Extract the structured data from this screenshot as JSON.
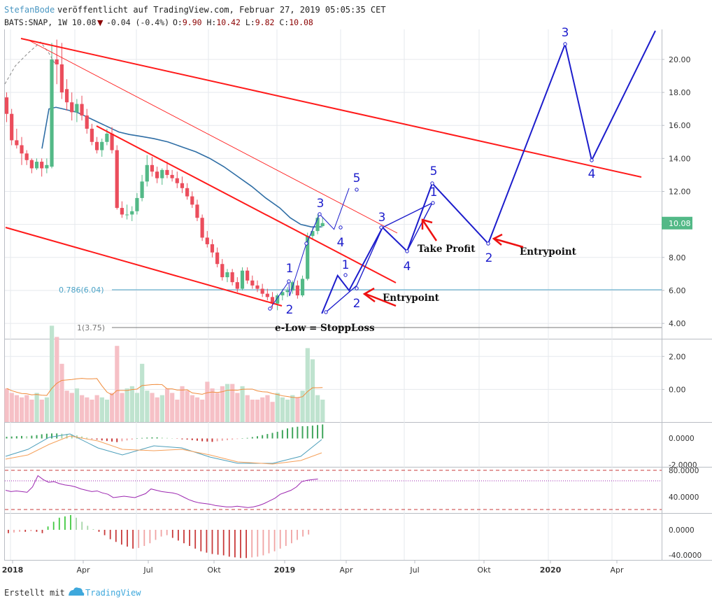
{
  "header": {
    "author": "StefanBode",
    "published": "veröffentlicht auf TradingView.com, Februar 27, 2019 05:05:35 CET",
    "symbol_line": "BATS:SNAP, 1W 10.08",
    "change": "-0.04 (-0.4%)",
    "ohlc": {
      "O": "9.90",
      "H": "10.42",
      "L": "9.82",
      "C": "10.08"
    }
  },
  "footer": {
    "created_with": "Erstellt mit",
    "brand": "TradingView"
  },
  "colors": {
    "up": "#53b987",
    "down": "#eb4d5c",
    "ma": "#2f6ea5",
    "trend": "#ff1a1a",
    "elliott": "#1d1dcc",
    "fib": "#4ba3c7",
    "grid": "#e6e9ed",
    "rsi": "#9c27b0",
    "macd_signal": "#f5a05a",
    "volume_ma": "#f08c3c"
  },
  "chart_data": [
    {
      "type": "candlestick",
      "title": "",
      "ylim": [
        0,
        22
      ],
      "y_ticks": [
        "20.00",
        "18.00",
        "16.00",
        "14.00",
        "12.00",
        "10.00",
        "8.00",
        "6.00",
        "4.00",
        "2.00",
        "0.00"
      ],
      "x_ticks": [
        "2018",
        "Apr",
        "Jul",
        "Okt",
        "2019",
        "Apr",
        "Jul",
        "Okt",
        "2020",
        "Apr"
      ],
      "last_price_label": "10.08",
      "fib_levels": [
        {
          "label": "0.786(6.04)",
          "value": 6.04
        },
        {
          "label": "1(3.75)",
          "value": 3.75
        }
      ],
      "candles_weekly_ohlc_estimated": [
        [
          17.7,
          18.0,
          16.2,
          16.7
        ],
        [
          16.7,
          17.0,
          14.8,
          15.1
        ],
        [
          15.1,
          15.8,
          14.6,
          14.8
        ],
        [
          14.8,
          15.3,
          13.6,
          14.3
        ],
        [
          14.3,
          14.5,
          13.6,
          13.9
        ],
        [
          13.9,
          14.0,
          13.1,
          13.4
        ],
        [
          13.4,
          14.0,
          13.3,
          13.8
        ],
        [
          13.8,
          14.0,
          12.9,
          13.4
        ],
        [
          13.4,
          14.0,
          13.1,
          13.6
        ],
        [
          13.5,
          21.0,
          13.4,
          20.0
        ],
        [
          20.0,
          21.2,
          18.5,
          19.7
        ],
        [
          19.7,
          21.0,
          17.6,
          18.0
        ],
        [
          18.2,
          18.8,
          16.9,
          17.4
        ],
        [
          17.4,
          18.0,
          16.3,
          16.8
        ],
        [
          16.8,
          17.6,
          16.2,
          17.3
        ],
        [
          17.3,
          17.8,
          16.3,
          16.6
        ],
        [
          16.6,
          17.0,
          15.5,
          15.8
        ],
        [
          15.8,
          16.1,
          14.8,
          15.0
        ],
        [
          15.0,
          15.3,
          14.3,
          14.5
        ],
        [
          14.5,
          15.2,
          14.1,
          15.0
        ],
        [
          15.0,
          15.8,
          14.8,
          15.5
        ],
        [
          15.5,
          15.9,
          14.3,
          14.5
        ],
        [
          14.5,
          14.8,
          10.9,
          11.0
        ],
        [
          11.0,
          11.4,
          10.4,
          10.6
        ],
        [
          10.6,
          11.2,
          10.3,
          10.6
        ],
        [
          10.6,
          11.1,
          10.2,
          10.8
        ],
        [
          10.8,
          11.9,
          10.6,
          11.6
        ],
        [
          11.6,
          13.0,
          11.4,
          12.6
        ],
        [
          12.6,
          14.2,
          12.3,
          13.6
        ],
        [
          13.6,
          14.1,
          12.9,
          13.2
        ],
        [
          13.2,
          13.5,
          12.5,
          12.8
        ],
        [
          12.8,
          13.4,
          12.4,
          13.3
        ],
        [
          13.3,
          13.8,
          12.8,
          13.0
        ],
        [
          13.0,
          13.3,
          12.6,
          12.8
        ],
        [
          12.8,
          13.2,
          12.2,
          12.5
        ],
        [
          12.5,
          12.9,
          11.9,
          12.2
        ],
        [
          12.2,
          12.5,
          11.5,
          11.7
        ],
        [
          11.7,
          12.0,
          11.0,
          11.2
        ],
        [
          11.2,
          11.5,
          10.2,
          10.4
        ],
        [
          10.4,
          10.6,
          9.0,
          9.2
        ],
        [
          9.2,
          9.6,
          8.6,
          8.8
        ],
        [
          8.8,
          9.1,
          8.0,
          8.3
        ],
        [
          8.3,
          8.6,
          7.4,
          7.6
        ],
        [
          7.6,
          7.9,
          6.6,
          6.8
        ],
        [
          6.8,
          7.3,
          6.5,
          7.1
        ],
        [
          7.1,
          7.3,
          6.3,
          6.5
        ],
        [
          6.5,
          6.8,
          5.9,
          6.1
        ],
        [
          6.1,
          7.4,
          6.0,
          7.2
        ],
        [
          7.2,
          7.4,
          6.4,
          6.6
        ],
        [
          6.6,
          6.9,
          6.1,
          6.3
        ],
        [
          6.3,
          6.6,
          5.9,
          6.1
        ],
        [
          6.1,
          6.4,
          5.6,
          5.8
        ],
        [
          5.8,
          6.1,
          5.4,
          5.6
        ],
        [
          5.6,
          5.9,
          4.9,
          5.2
        ],
        [
          5.2,
          5.8,
          4.8,
          5.7
        ],
        [
          5.7,
          6.1,
          5.4,
          5.9
        ],
        [
          5.9,
          6.2,
          5.6,
          6.0
        ],
        [
          6.0,
          6.6,
          5.8,
          6.5
        ],
        [
          6.3,
          6.6,
          5.5,
          5.7
        ],
        [
          5.7,
          6.9,
          5.6,
          6.7
        ],
        [
          6.7,
          9.5,
          6.6,
          9.3
        ],
        [
          9.3,
          9.8,
          9.1,
          9.6
        ],
        [
          9.6,
          10.6,
          9.4,
          10.4
        ],
        [
          9.9,
          10.42,
          9.82,
          10.08
        ]
      ],
      "moving_average_estimated": [
        14.6,
        17.0,
        17.1,
        17.0,
        16.9,
        16.8,
        16.6,
        16.4,
        16.2,
        16.0,
        15.8,
        15.6,
        15.45,
        15.35,
        15.2,
        15.0,
        14.7,
        14.4,
        14.0,
        13.5,
        12.9,
        12.3,
        11.6,
        11.0,
        10.4,
        10.0,
        9.85,
        9.85
      ],
      "elliott_annotations": [
        "1",
        "2",
        "3",
        "4",
        "5",
        "1",
        "2",
        "3",
        "4",
        "5",
        "1",
        "2",
        "3",
        "4"
      ],
      "text_annotations": [
        "e-Low = StoppLoss",
        "Entrypoint",
        "Take Profit",
        "Entrypoint"
      ],
      "projection_path_points_estimated": [
        {
          "date": "2019-02-27",
          "value": 10.5
        },
        {
          "date": "2019-03-27",
          "value": 9.7
        },
        {
          "date": "2019-04-17",
          "value": 12.2
        },
        {
          "date": "2019-03-10",
          "value": 4.6
        },
        {
          "date": "2019-04-01",
          "value": 6.9
        },
        {
          "date": "2019-04-17",
          "value": 6.0
        },
        {
          "date": "2019-05-24",
          "value": 9.8
        },
        {
          "date": "2019-06-20",
          "value": 8.3
        },
        {
          "date": "2019-07-20",
          "value": 12.6
        },
        {
          "date": "2019-10-10",
          "value": 8.8
        },
        {
          "date": "2020-01-30",
          "value": 21.0
        },
        {
          "date": "2020-03-10",
          "value": 13.8
        },
        {
          "date": "2020-05-20",
          "value": 22.5
        }
      ]
    },
    {
      "type": "bar",
      "title": "",
      "series": [
        {
          "name": "",
          "values_estimated": [
            1.5,
            1.3,
            1.2,
            1.1,
            1.2,
            1.0,
            1.3,
            1.0,
            1.1,
            4.3,
            3.8,
            2.6,
            1.4,
            1.3,
            1.5,
            1.2,
            1.1,
            1.0,
            1.2,
            1.1,
            1.0,
            1.3,
            3.4,
            1.3,
            1.5,
            1.6,
            1.3,
            2.6,
            1.4,
            1.3,
            1.1,
            1.2,
            1.5,
            1.3,
            1.0,
            1.6,
            1.4,
            1.2,
            1.1,
            1.0,
            1.8,
            1.5,
            1.3,
            1.6,
            1.7,
            1.7,
            1.3,
            1.6,
            1.2,
            1.0,
            1.0,
            1.1,
            1.2,
            0.9,
            1.3,
            1.1,
            1.0,
            1.2,
            1.1,
            1.4,
            3.3,
            2.8,
            1.2,
            1.0
          ]
        }
      ]
    },
    {
      "type": "bar",
      "title": "",
      "y_ticks": [
        "0.0000",
        "-2.0000"
      ],
      "series": [
        {
          "name": "",
          "values_estimated": [
            0.3,
            0.35,
            0.4,
            0.45,
            0.4,
            0.5,
            0.6,
            0.75,
            0.85,
            0.9,
            0.9,
            0.85,
            0.8,
            0.7,
            0.55,
            0.35,
            0.15,
            -0.1,
            -0.2,
            -0.35,
            -0.45,
            -0.55,
            -0.65,
            -0.5,
            -0.35,
            -0.2,
            0.0,
            0.1,
            0.15,
            0.2,
            0.2,
            0.15,
            0.1,
            0.0,
            -0.05,
            -0.15,
            -0.2,
            -0.3,
            -0.4,
            -0.5,
            -0.55,
            -0.6,
            -0.5,
            -0.4,
            -0.3,
            -0.2,
            -0.1,
            0.0,
            0.1,
            0.25,
            0.4,
            0.6,
            0.8,
            1.0,
            1.2,
            1.5,
            1.8,
            2.0,
            2.1,
            2.2,
            2.2,
            2.3,
            2.4,
            2.5
          ]
        }
      ]
    },
    {
      "type": "line",
      "title": "",
      "y_ticks": [
        "80.0000",
        "40.0000"
      ],
      "series": [
        {
          "name": "",
          "values_estimated": [
            50,
            48,
            49,
            48,
            47,
            55,
            72,
            66,
            62,
            63,
            60,
            58,
            57,
            55,
            52,
            50,
            48,
            49,
            46,
            44,
            39,
            40,
            41,
            40,
            39,
            42,
            45,
            52,
            50,
            48,
            47,
            46,
            44,
            40,
            36,
            33,
            31,
            30,
            29,
            27,
            26,
            25,
            25,
            26,
            25,
            24,
            25,
            27,
            30,
            34,
            38,
            44,
            47,
            50,
            55,
            63,
            65,
            66,
            67
          ]
        }
      ],
      "reference_lines": [
        70,
        30
      ]
    },
    {
      "type": "bar",
      "title": "",
      "y_ticks": [
        "0.0000",
        "-40.0000"
      ],
      "series": [
        {
          "name": "",
          "values_estimated": [
            -5,
            -4,
            -3,
            -3,
            -2,
            -3,
            -5,
            5,
            12,
            18,
            20,
            22,
            18,
            12,
            6,
            1,
            -3,
            -8,
            -14,
            -18,
            -22,
            -25,
            -28,
            -27,
            -24,
            -20,
            -15,
            -10,
            -8,
            -12,
            -16,
            -20,
            -24,
            -28,
            -32,
            -34,
            -36,
            -37,
            -38,
            -40,
            -41,
            -42,
            -42,
            -41,
            -40,
            -38,
            -35,
            -32,
            -28,
            -24,
            -20,
            -15,
            -10,
            -7
          ]
        }
      ]
    }
  ]
}
